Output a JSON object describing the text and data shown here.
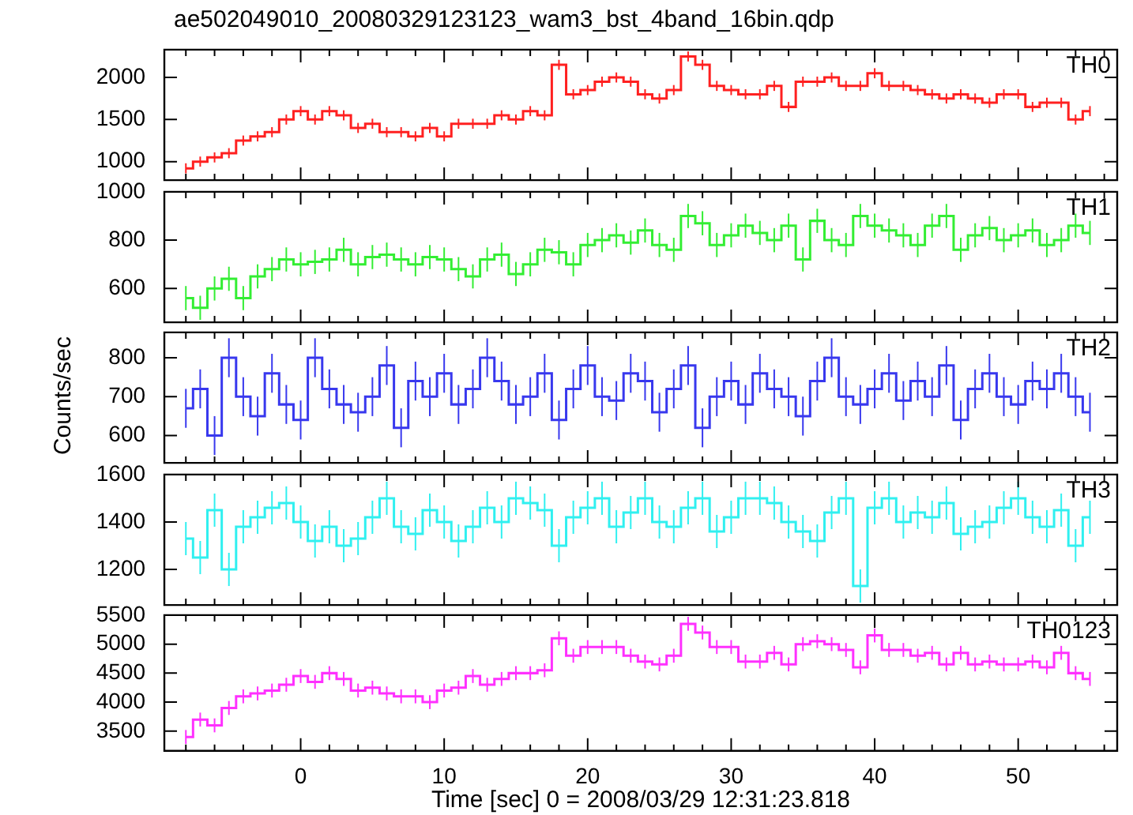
{
  "chart_data": [
    {
      "type": "step",
      "title": "ae502049010_20080329123123_wam3_bst_4band_16bin.qdp",
      "tick_labels": "y",
      "xlim": [
        -9.5,
        56.9
      ],
      "ylim": [
        780,
        2330
      ],
      "yticks": [
        1000,
        1500,
        2000
      ],
      "xticks": [
        {
          "value": -8,
          "label": null
        },
        {
          "value": -6,
          "label": null
        },
        {
          "value": -4,
          "label": null
        },
        {
          "value": -2,
          "label": null
        },
        0,
        {
          "value": 2,
          "label": null
        },
        {
          "value": 4,
          "label": null
        },
        {
          "value": 6,
          "label": null
        },
        {
          "value": 8,
          "label": null
        },
        10,
        {
          "value": 12,
          "label": null
        },
        {
          "value": 14,
          "label": null
        },
        {
          "value": 16,
          "label": null
        },
        {
          "value": 18,
          "label": null
        },
        20,
        {
          "value": 22,
          "label": null
        },
        {
          "value": 24,
          "label": null
        },
        {
          "value": 26,
          "label": null
        },
        {
          "value": 28,
          "label": null
        },
        30,
        {
          "value": 32,
          "label": null
        },
        {
          "value": 34,
          "label": null
        },
        {
          "value": 36,
          "label": null
        },
        {
          "value": 38,
          "label": null
        },
        40,
        {
          "value": 42,
          "label": null
        },
        {
          "value": 44,
          "label": null
        },
        {
          "value": 46,
          "label": null
        },
        {
          "value": 48,
          "label": null
        },
        50,
        {
          "value": 52,
          "label": null
        },
        {
          "value": 54,
          "label": null
        },
        {
          "value": 56,
          "label": null
        }
      ],
      "x": [
        -8,
        -7,
        -6,
        -5,
        -4,
        -3,
        -2,
        -1,
        0,
        1,
        2,
        3,
        4,
        5,
        6,
        7,
        8,
        9,
        10,
        11,
        12,
        13,
        14,
        15,
        16,
        17,
        18,
        19,
        20,
        21,
        22,
        23,
        24,
        25,
        26,
        27,
        28,
        29,
        30,
        31,
        32,
        33,
        34,
        35,
        36,
        37,
        38,
        39,
        40,
        41,
        42,
        43,
        44,
        45,
        46,
        47,
        48,
        49,
        50,
        51,
        52,
        53,
        54,
        55
      ],
      "series": [
        {
          "name": "TH0",
          "color": "#ff2020",
          "errors": [
            60,
            60,
            60,
            60,
            60,
            60,
            60,
            60,
            60,
            60,
            60,
            60,
            60,
            60,
            60,
            60,
            60,
            60,
            60,
            60,
            60,
            60,
            60,
            60,
            60,
            60,
            60,
            60,
            60,
            60,
            60,
            60,
            60,
            60,
            60,
            60,
            60,
            60,
            60,
            60,
            60,
            60,
            60,
            60,
            60,
            60,
            60,
            60,
            60,
            60,
            60,
            60,
            60,
            60,
            60,
            60,
            60,
            60,
            60,
            60,
            60,
            60,
            60,
            60
          ],
          "values": [
            920,
            1000,
            1050,
            1100,
            1250,
            1300,
            1350,
            1500,
            1600,
            1500,
            1600,
            1550,
            1400,
            1450,
            1350,
            1350,
            1300,
            1400,
            1300,
            1450,
            1450,
            1450,
            1550,
            1500,
            1600,
            1550,
            2150,
            1800,
            1850,
            1950,
            2000,
            1950,
            1800,
            1750,
            1850,
            2250,
            2150,
            1900,
            1850,
            1800,
            1800,
            1900,
            1650,
            1950,
            1950,
            2000,
            1900,
            1900,
            2050,
            1900,
            1900,
            1850,
            1800,
            1750,
            1800,
            1750,
            1700,
            1800,
            1800,
            1650,
            1700,
            1700,
            1500,
            1600
          ]
        }
      ]
    },
    {
      "type": "step",
      "tick_labels": "y",
      "xlim": [
        -9.5,
        56.9
      ],
      "ylim": [
        460,
        1000
      ],
      "yticks": [
        600,
        800,
        1000
      ],
      "xticks": [
        {
          "value": -8,
          "label": null
        },
        {
          "value": -6,
          "label": null
        },
        {
          "value": -4,
          "label": null
        },
        {
          "value": -2,
          "label": null
        },
        0,
        {
          "value": 2,
          "label": null
        },
        {
          "value": 4,
          "label": null
        },
        {
          "value": 6,
          "label": null
        },
        {
          "value": 8,
          "label": null
        },
        10,
        {
          "value": 12,
          "label": null
        },
        {
          "value": 14,
          "label": null
        },
        {
          "value": 16,
          "label": null
        },
        {
          "value": 18,
          "label": null
        },
        20,
        {
          "value": 22,
          "label": null
        },
        {
          "value": 24,
          "label": null
        },
        {
          "value": 26,
          "label": null
        },
        {
          "value": 28,
          "label": null
        },
        30,
        {
          "value": 32,
          "label": null
        },
        {
          "value": 34,
          "label": null
        },
        {
          "value": 36,
          "label": null
        },
        {
          "value": 38,
          "label": null
        },
        40,
        {
          "value": 42,
          "label": null
        },
        {
          "value": 44,
          "label": null
        },
        {
          "value": 46,
          "label": null
        },
        {
          "value": 48,
          "label": null
        },
        50,
        {
          "value": 52,
          "label": null
        },
        {
          "value": 54,
          "label": null
        },
        {
          "value": 56,
          "label": null
        }
      ],
      "x": [
        -8,
        -7,
        -6,
        -5,
        -4,
        -3,
        -2,
        -1,
        0,
        1,
        2,
        3,
        4,
        5,
        6,
        7,
        8,
        9,
        10,
        11,
        12,
        13,
        14,
        15,
        16,
        17,
        18,
        19,
        20,
        21,
        22,
        23,
        24,
        25,
        26,
        27,
        28,
        29,
        30,
        31,
        32,
        33,
        34,
        35,
        36,
        37,
        38,
        39,
        40,
        41,
        42,
        43,
        44,
        45,
        46,
        47,
        48,
        49,
        50,
        51,
        52,
        53,
        54,
        55
      ],
      "series": [
        {
          "name": "TH1",
          "color": "#33ee33",
          "errors": [
            50,
            50,
            50,
            50,
            50,
            50,
            50,
            50,
            50,
            50,
            50,
            50,
            50,
            50,
            50,
            50,
            50,
            50,
            50,
            50,
            50,
            50,
            50,
            50,
            50,
            50,
            50,
            50,
            50,
            50,
            50,
            50,
            50,
            50,
            50,
            50,
            50,
            50,
            50,
            50,
            50,
            50,
            50,
            50,
            50,
            50,
            50,
            50,
            50,
            50,
            50,
            50,
            50,
            50,
            50,
            50,
            50,
            50,
            50,
            50,
            50,
            50,
            50,
            50
          ],
          "values": [
            560,
            520,
            600,
            640,
            560,
            650,
            680,
            720,
            700,
            710,
            720,
            760,
            700,
            730,
            740,
            720,
            700,
            730,
            720,
            680,
            650,
            720,
            740,
            660,
            700,
            760,
            750,
            700,
            780,
            800,
            820,
            790,
            840,
            780,
            760,
            900,
            870,
            780,
            820,
            860,
            830,
            800,
            860,
            720,
            880,
            800,
            780,
            900,
            860,
            840,
            820,
            780,
            860,
            900,
            760,
            820,
            850,
            800,
            820,
            840,
            780,
            800,
            860,
            830
          ]
        }
      ]
    },
    {
      "type": "step",
      "tick_labels": "y",
      "xlim": [
        -9.5,
        56.9
      ],
      "ylim": [
        530,
        865
      ],
      "yticks": [
        600,
        700,
        800
      ],
      "ylabel": "Counts/sec",
      "xticks": [
        {
          "value": -8,
          "label": null
        },
        {
          "value": -6,
          "label": null
        },
        {
          "value": -4,
          "label": null
        },
        {
          "value": -2,
          "label": null
        },
        0,
        {
          "value": 2,
          "label": null
        },
        {
          "value": 4,
          "label": null
        },
        {
          "value": 6,
          "label": null
        },
        {
          "value": 8,
          "label": null
        },
        10,
        {
          "value": 12,
          "label": null
        },
        {
          "value": 14,
          "label": null
        },
        {
          "value": 16,
          "label": null
        },
        {
          "value": 18,
          "label": null
        },
        20,
        {
          "value": 22,
          "label": null
        },
        {
          "value": 24,
          "label": null
        },
        {
          "value": 26,
          "label": null
        },
        {
          "value": 28,
          "label": null
        },
        30,
        {
          "value": 32,
          "label": null
        },
        {
          "value": 34,
          "label": null
        },
        {
          "value": 36,
          "label": null
        },
        {
          "value": 38,
          "label": null
        },
        40,
        {
          "value": 42,
          "label": null
        },
        {
          "value": 44,
          "label": null
        },
        {
          "value": 46,
          "label": null
        },
        {
          "value": 48,
          "label": null
        },
        50,
        {
          "value": 52,
          "label": null
        },
        {
          "value": 54,
          "label": null
        },
        {
          "value": 56,
          "label": null
        }
      ],
      "x": [
        -8,
        -7,
        -6,
        -5,
        -4,
        -3,
        -2,
        -1,
        0,
        1,
        2,
        3,
        4,
        5,
        6,
        7,
        8,
        9,
        10,
        11,
        12,
        13,
        14,
        15,
        16,
        17,
        18,
        19,
        20,
        21,
        22,
        23,
        24,
        25,
        26,
        27,
        28,
        29,
        30,
        31,
        32,
        33,
        34,
        35,
        36,
        37,
        38,
        39,
        40,
        41,
        42,
        43,
        44,
        45,
        46,
        47,
        48,
        49,
        50,
        51,
        52,
        53,
        54,
        55
      ],
      "series": [
        {
          "name": "TH2",
          "color": "#3838ee",
          "errors": [
            50,
            50,
            50,
            50,
            50,
            50,
            50,
            50,
            50,
            50,
            50,
            50,
            50,
            50,
            50,
            50,
            50,
            50,
            50,
            50,
            50,
            50,
            50,
            50,
            50,
            50,
            50,
            50,
            50,
            50,
            50,
            50,
            50,
            50,
            50,
            50,
            50,
            50,
            50,
            50,
            50,
            50,
            50,
            50,
            50,
            50,
            50,
            50,
            50,
            50,
            50,
            50,
            50,
            50,
            50,
            50,
            50,
            50,
            50,
            50,
            50,
            50,
            50,
            50
          ],
          "values": [
            670,
            720,
            600,
            800,
            700,
            650,
            760,
            680,
            640,
            800,
            720,
            680,
            660,
            700,
            780,
            620,
            740,
            700,
            760,
            680,
            720,
            800,
            740,
            680,
            700,
            760,
            640,
            720,
            780,
            700,
            690,
            760,
            740,
            660,
            720,
            780,
            620,
            700,
            740,
            680,
            760,
            720,
            700,
            650,
            740,
            800,
            700,
            680,
            720,
            760,
            690,
            740,
            700,
            780,
            640,
            720,
            760,
            700,
            680,
            740,
            720,
            760,
            700,
            660
          ]
        }
      ]
    },
    {
      "type": "step",
      "tick_labels": "y",
      "xlim": [
        -9.5,
        56.9
      ],
      "ylim": [
        1050,
        1600
      ],
      "yticks": [
        1200,
        1400,
        1600
      ],
      "xticks": [
        {
          "value": -8,
          "label": null
        },
        {
          "value": -6,
          "label": null
        },
        {
          "value": -4,
          "label": null
        },
        {
          "value": -2,
          "label": null
        },
        0,
        {
          "value": 2,
          "label": null
        },
        {
          "value": 4,
          "label": null
        },
        {
          "value": 6,
          "label": null
        },
        {
          "value": 8,
          "label": null
        },
        10,
        {
          "value": 12,
          "label": null
        },
        {
          "value": 14,
          "label": null
        },
        {
          "value": 16,
          "label": null
        },
        {
          "value": 18,
          "label": null
        },
        20,
        {
          "value": 22,
          "label": null
        },
        {
          "value": 24,
          "label": null
        },
        {
          "value": 26,
          "label": null
        },
        {
          "value": 28,
          "label": null
        },
        30,
        {
          "value": 32,
          "label": null
        },
        {
          "value": 34,
          "label": null
        },
        {
          "value": 36,
          "label": null
        },
        {
          "value": 38,
          "label": null
        },
        40,
        {
          "value": 42,
          "label": null
        },
        {
          "value": 44,
          "label": null
        },
        {
          "value": 46,
          "label": null
        },
        {
          "value": 48,
          "label": null
        },
        50,
        {
          "value": 52,
          "label": null
        },
        {
          "value": 54,
          "label": null
        },
        {
          "value": 56,
          "label": null
        }
      ],
      "x": [
        -8,
        -7,
        -6,
        -5,
        -4,
        -3,
        -2,
        -1,
        0,
        1,
        2,
        3,
        4,
        5,
        6,
        7,
        8,
        9,
        10,
        11,
        12,
        13,
        14,
        15,
        16,
        17,
        18,
        19,
        20,
        21,
        22,
        23,
        24,
        25,
        26,
        27,
        28,
        29,
        30,
        31,
        32,
        33,
        34,
        35,
        36,
        37,
        38,
        39,
        40,
        41,
        42,
        43,
        44,
        45,
        46,
        47,
        48,
        49,
        50,
        51,
        52,
        53,
        54,
        55
      ],
      "series": [
        {
          "name": "TH3",
          "color": "#30f0f0",
          "errors": [
            70,
            70,
            70,
            70,
            70,
            70,
            70,
            70,
            70,
            70,
            70,
            70,
            70,
            70,
            70,
            70,
            70,
            70,
            70,
            70,
            70,
            70,
            70,
            70,
            70,
            70,
            70,
            70,
            70,
            70,
            70,
            70,
            70,
            70,
            70,
            70,
            70,
            70,
            70,
            70,
            70,
            70,
            70,
            70,
            70,
            70,
            70,
            70,
            70,
            70,
            70,
            70,
            70,
            70,
            70,
            70,
            70,
            70,
            70,
            70,
            70,
            70,
            70,
            70
          ],
          "values": [
            1330,
            1250,
            1450,
            1200,
            1380,
            1420,
            1460,
            1480,
            1400,
            1320,
            1380,
            1300,
            1330,
            1420,
            1500,
            1380,
            1350,
            1450,
            1400,
            1320,
            1380,
            1460,
            1400,
            1500,
            1480,
            1450,
            1300,
            1420,
            1460,
            1500,
            1380,
            1440,
            1500,
            1400,
            1380,
            1460,
            1500,
            1360,
            1420,
            1500,
            1500,
            1480,
            1400,
            1360,
            1320,
            1440,
            1500,
            1130,
            1460,
            1500,
            1400,
            1440,
            1420,
            1480,
            1350,
            1380,
            1400,
            1460,
            1500,
            1420,
            1380,
            1450,
            1300,
            1420
          ]
        }
      ]
    },
    {
      "type": "step",
      "xlabel": "Time [sec] 0 = 2008/03/29 12:31:23.818",
      "xlim": [
        -9.5,
        56.9
      ],
      "ylim": [
        3160,
        5500
      ],
      "yticks": [
        3500,
        4000,
        4500,
        5000,
        5500
      ],
      "xticks": [
        {
          "value": -8,
          "label": null
        },
        {
          "value": -6,
          "label": null
        },
        {
          "value": -4,
          "label": null
        },
        {
          "value": -2,
          "label": null
        },
        0,
        {
          "value": 2,
          "label": null
        },
        {
          "value": 4,
          "label": null
        },
        {
          "value": 6,
          "label": null
        },
        {
          "value": 8,
          "label": null
        },
        10,
        {
          "value": 12,
          "label": null
        },
        {
          "value": 14,
          "label": null
        },
        {
          "value": 16,
          "label": null
        },
        {
          "value": 18,
          "label": null
        },
        20,
        {
          "value": 22,
          "label": null
        },
        {
          "value": 24,
          "label": null
        },
        {
          "value": 26,
          "label": null
        },
        {
          "value": 28,
          "label": null
        },
        30,
        {
          "value": 32,
          "label": null
        },
        {
          "value": 34,
          "label": null
        },
        {
          "value": 36,
          "label": null
        },
        {
          "value": 38,
          "label": null
        },
        40,
        {
          "value": 42,
          "label": null
        },
        {
          "value": 44,
          "label": null
        },
        {
          "value": 46,
          "label": null
        },
        {
          "value": 48,
          "label": null
        },
        50,
        {
          "value": 52,
          "label": null
        },
        {
          "value": 54,
          "label": null
        },
        {
          "value": 56,
          "label": null
        }
      ],
      "x": [
        -8,
        -7,
        -6,
        -5,
        -4,
        -3,
        -2,
        -1,
        0,
        1,
        2,
        3,
        4,
        5,
        6,
        7,
        8,
        9,
        10,
        11,
        12,
        13,
        14,
        15,
        16,
        17,
        18,
        19,
        20,
        21,
        22,
        23,
        24,
        25,
        26,
        27,
        28,
        29,
        30,
        31,
        32,
        33,
        34,
        35,
        36,
        37,
        38,
        39,
        40,
        41,
        42,
        43,
        44,
        45,
        46,
        47,
        48,
        49,
        50,
        51,
        52,
        53,
        54,
        55
      ],
      "series": [
        {
          "name": "TH0123",
          "color": "#ff30ff",
          "errors": [
            120,
            120,
            120,
            120,
            120,
            120,
            120,
            120,
            120,
            120,
            120,
            120,
            120,
            120,
            120,
            120,
            120,
            120,
            120,
            120,
            120,
            120,
            120,
            120,
            120,
            120,
            120,
            120,
            120,
            120,
            120,
            120,
            120,
            120,
            120,
            120,
            120,
            120,
            120,
            120,
            120,
            120,
            120,
            120,
            120,
            120,
            120,
            120,
            120,
            120,
            120,
            120,
            120,
            120,
            120,
            120,
            120,
            120,
            120,
            120,
            120,
            120,
            120,
            120
          ],
          "values": [
            3400,
            3700,
            3600,
            3900,
            4100,
            4150,
            4200,
            4300,
            4450,
            4350,
            4500,
            4400,
            4200,
            4250,
            4150,
            4100,
            4100,
            4000,
            4200,
            4250,
            4450,
            4300,
            4400,
            4500,
            4500,
            4550,
            5100,
            4800,
            4950,
            4950,
            4950,
            4800,
            4700,
            4650,
            4800,
            5350,
            5200,
            4950,
            4950,
            4700,
            4700,
            4850,
            4650,
            5000,
            5050,
            5000,
            4900,
            4600,
            5150,
            4900,
            4900,
            4800,
            4850,
            4650,
            4850,
            4650,
            4700,
            4650,
            4650,
            4700,
            4600,
            4850,
            4500,
            4400
          ]
        }
      ]
    }
  ]
}
